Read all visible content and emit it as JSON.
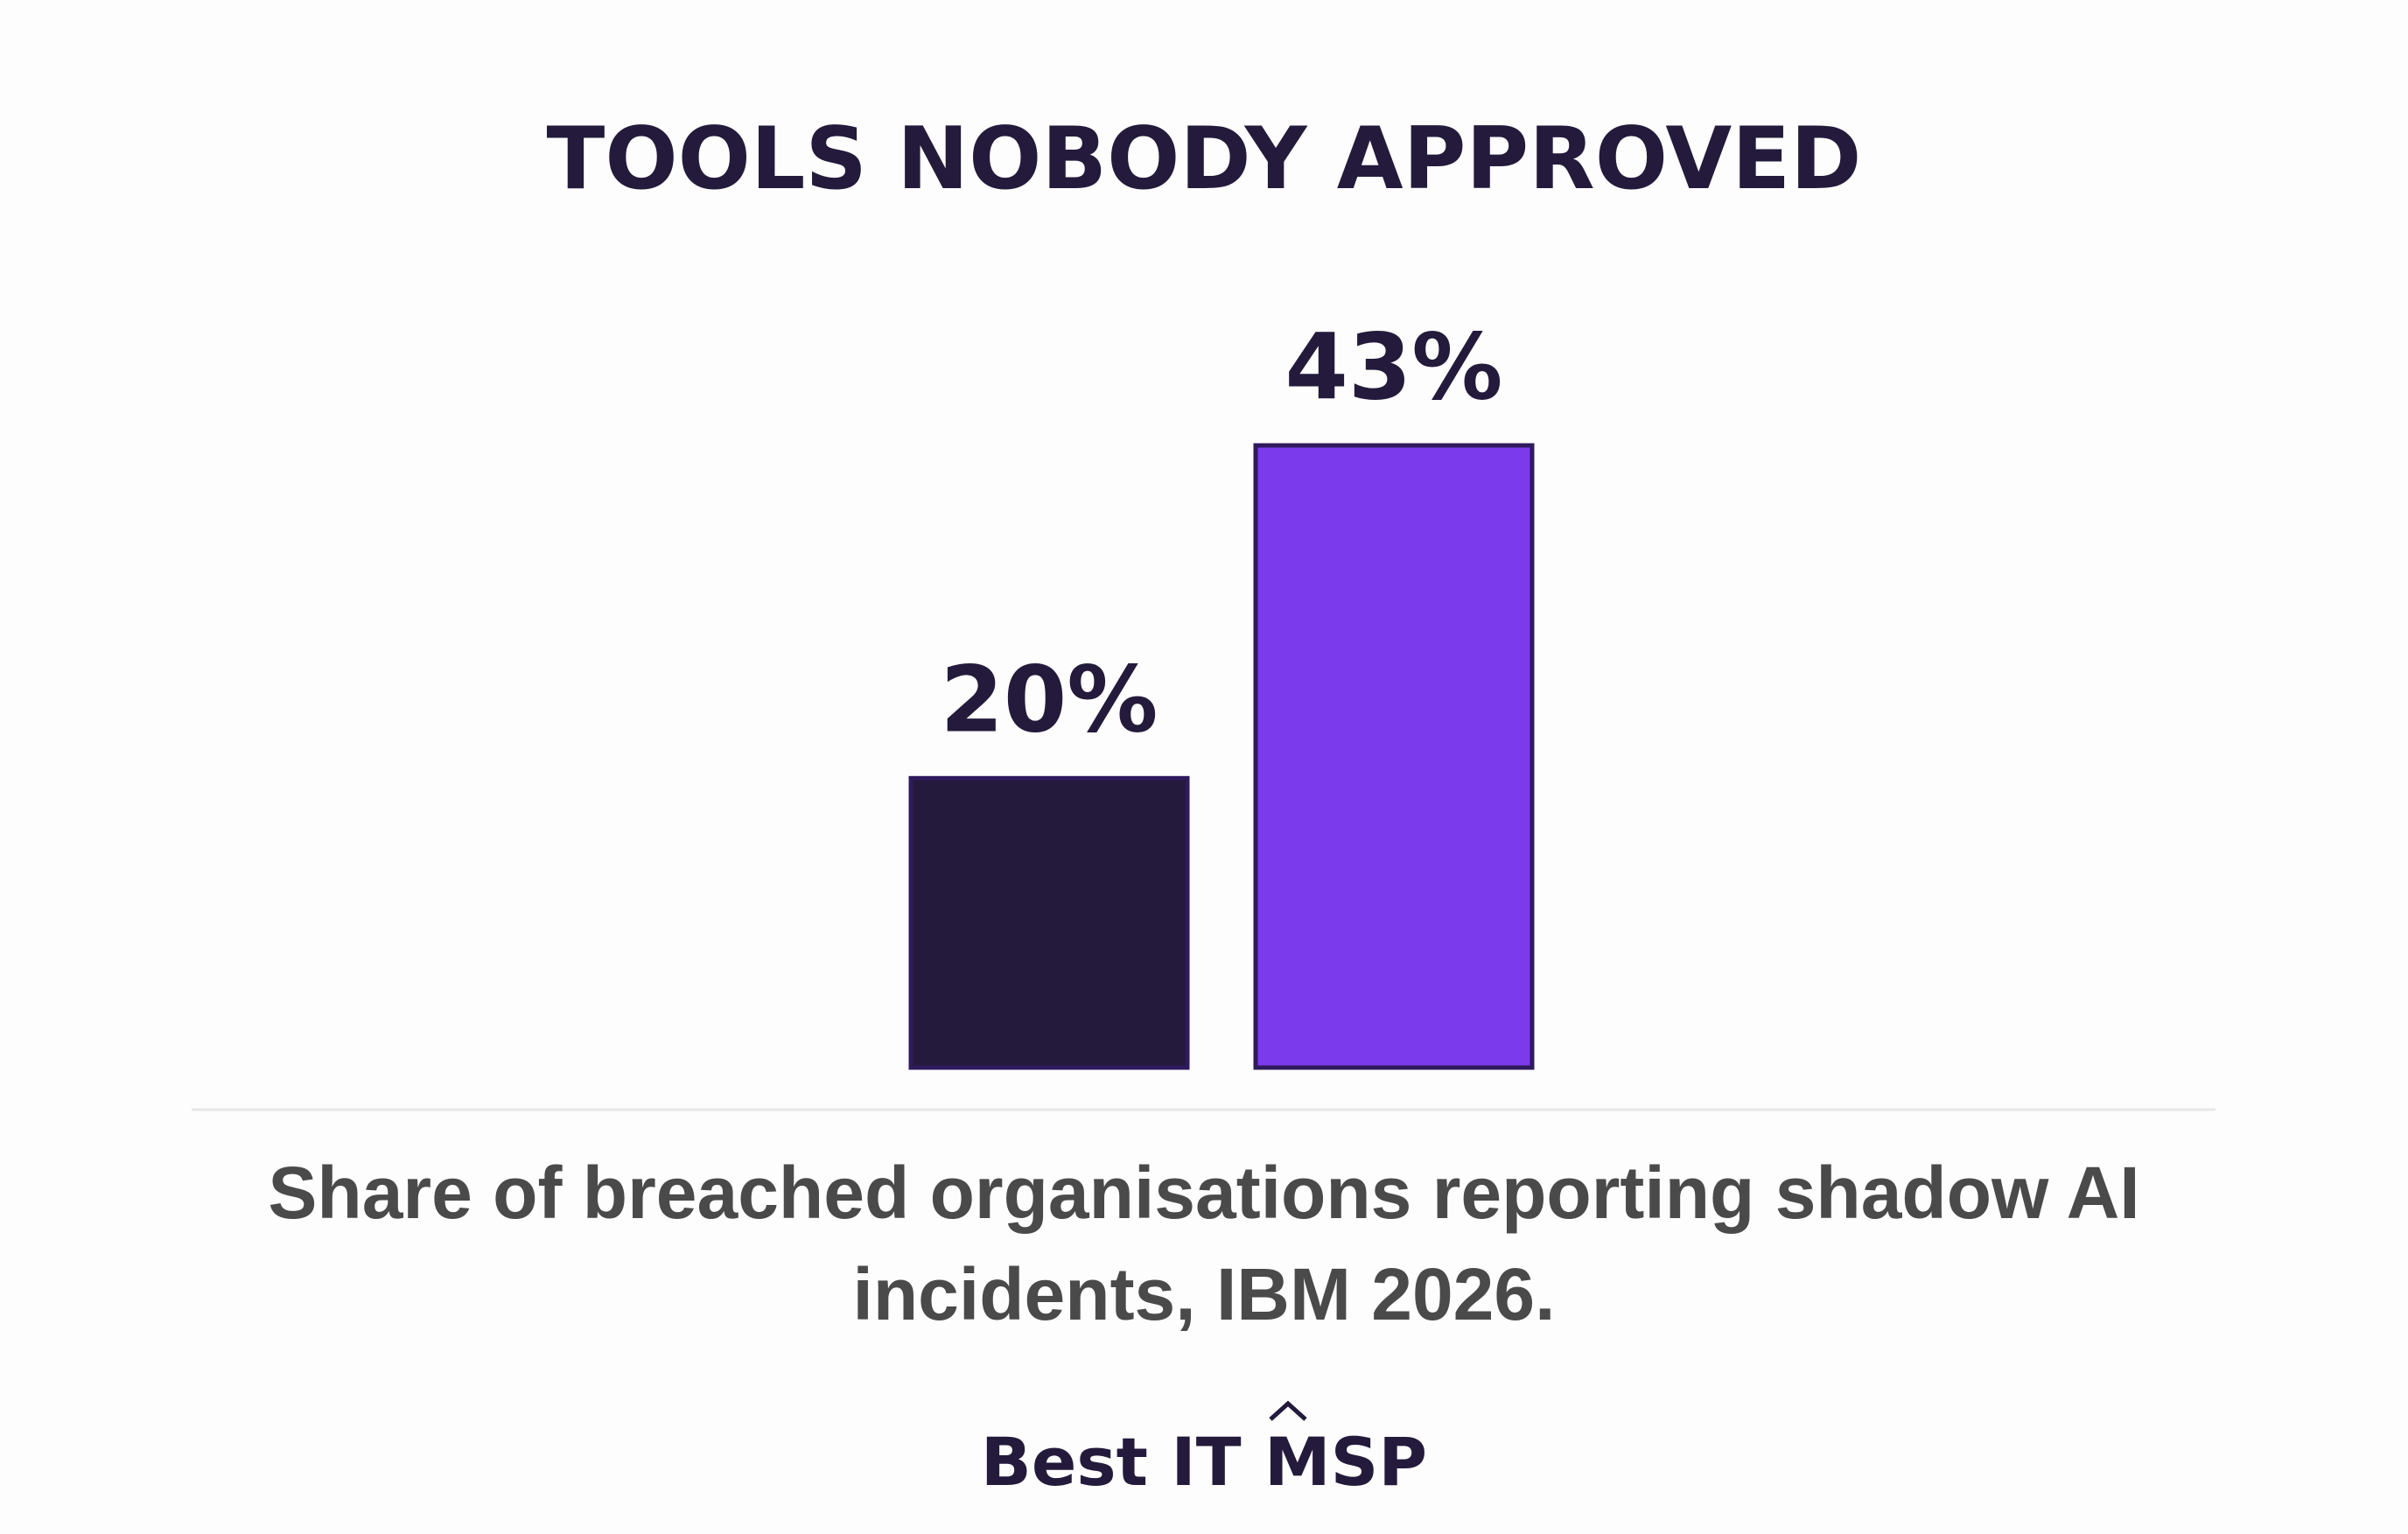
{
  "chart_data": {
    "type": "bar",
    "title": "TOOLS NOBODY APPROVED",
    "categories": [
      null,
      null
    ],
    "values": [
      20,
      43
    ],
    "value_labels": [
      "20%",
      "43%"
    ],
    "colors": [
      "#241a3b",
      "#7c3aed"
    ],
    "edgecolor": "#2e1a5c",
    "caption": "Share of breached organisations reporting shadow AI incidents, IBM 2026.",
    "brand": "Best IT MSP"
  }
}
